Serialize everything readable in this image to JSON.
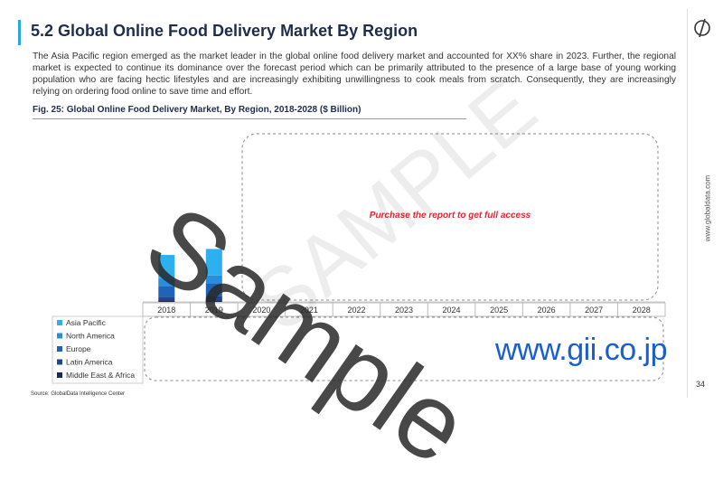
{
  "header": {
    "title": "5.2 Global Online Food Delivery Market By Region"
  },
  "body": {
    "paragraph": "The Asia Pacific region emerged as the market leader in the global online food delivery market and accounted for XX% share in 2023. Further, the regional market is expected to continue its dominance over the forecast period which can be primarily attributed to the presence of a large base of young working population who are facing hectic lifestyles and are increasingly exhibiting unwillingness to cook meals from scratch. Consequently, they are increasingly relying on ordering food online to save time and effort."
  },
  "figure": {
    "caption": "Fig. 25: Global Online Food Delivery Market, By Region, 2018-2028 ($ Billion)",
    "overlay_text": "Purchase the report to get full access"
  },
  "chart_data": {
    "type": "bar",
    "stacked": true,
    "categories": [
      "2018",
      "2019",
      "2020",
      "2021",
      "2022",
      "2023",
      "2024",
      "2025",
      "2026",
      "2027",
      "2028"
    ],
    "series": [
      {
        "name": "Asia Pacific",
        "color": "#2cb0ee",
        "values": [
          28,
          31,
          null,
          null,
          null,
          null,
          null,
          null,
          null,
          null,
          null
        ]
      },
      {
        "name": "North America",
        "color": "#2a8ddc",
        "values": [
          9,
          9,
          null,
          null,
          null,
          null,
          null,
          null,
          null,
          null,
          null
        ]
      },
      {
        "name": "Europe",
        "color": "#1f64b8",
        "values": [
          12,
          15,
          null,
          null,
          null,
          null,
          null,
          null,
          null,
          null,
          null
        ]
      },
      {
        "name": "Latin America",
        "color": "#1b4690",
        "values": [
          4,
          5,
          null,
          null,
          null,
          null,
          null,
          null,
          null,
          null,
          null
        ]
      },
      {
        "name": "Middle East & Africa",
        "color": "#172a5c",
        "values": [
          2,
          2,
          null,
          null,
          null,
          null,
          null,
          null,
          null,
          null,
          null
        ]
      }
    ],
    "ylim": [
      0,
      180
    ]
  },
  "source": "Source: GlobalData Intelligence Center",
  "watermark": {
    "main": "Sample",
    "faint": "SAMPLE"
  },
  "side_url": "www.globaldata.com",
  "gii_url": "www.gii.co.jp",
  "page_number": "34"
}
